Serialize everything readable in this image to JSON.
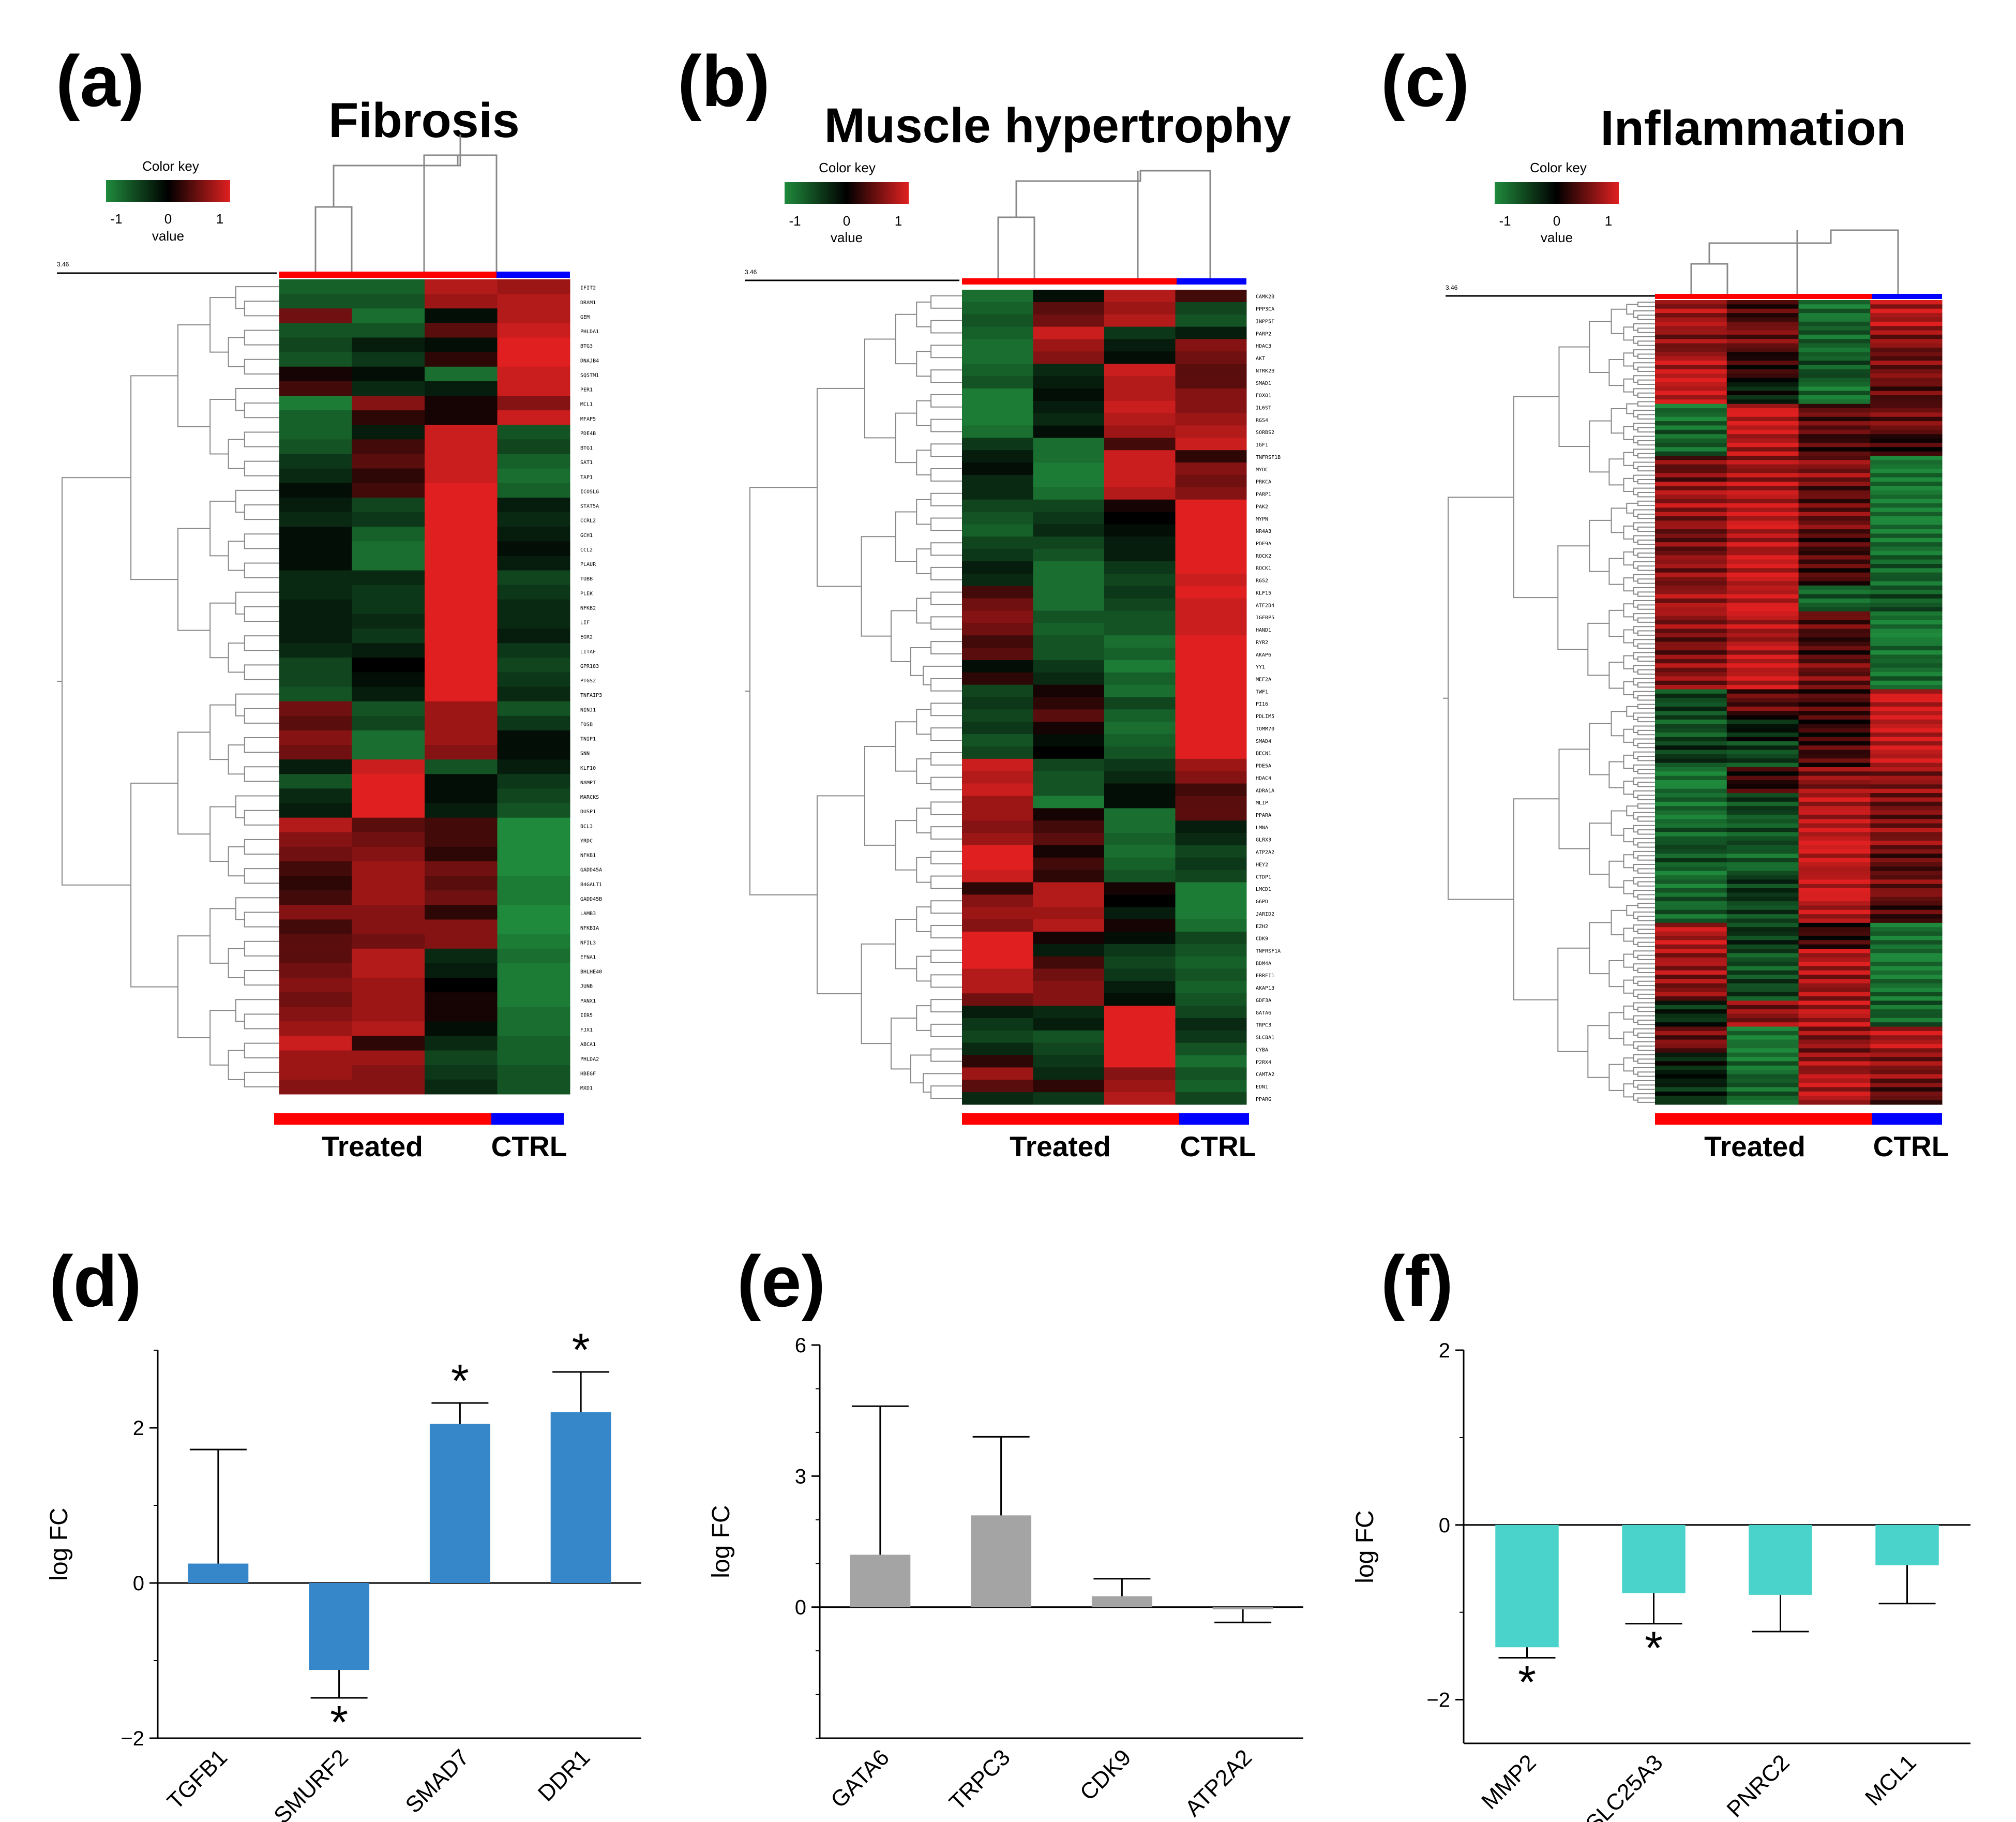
{
  "chart_data": [
    {
      "type": "heatmap",
      "panel": "(a)",
      "title": "Fibrosis",
      "color_key": {
        "title": "Color key",
        "label": "value",
        "ticks": [
          "-1",
          "0",
          "1"
        ],
        "colors": [
          "#1f8a3c",
          "#000000",
          "#e02020"
        ]
      },
      "scale_label": "3.46",
      "groups": [
        {
          "name": "Treated",
          "color": "#ff0000",
          "columns": 3
        },
        {
          "name": "CTRL",
          "color": "#0000ff",
          "columns": 1
        }
      ],
      "rows": [
        "IFIT2",
        "DRAM1",
        "GEM",
        "PHLDA1",
        "BTG3",
        "DNAJB4",
        "SQSTM1",
        "PER1",
        "MCL1",
        "MFAP5",
        "PDE4B",
        "BTG1",
        "SAT1",
        "TAP1",
        "ICOSLG",
        "STAT5A",
        "CCRL2",
        "GCH1",
        "CCL2",
        "PLAUR",
        "TUBB",
        "PLEK",
        "NFKB2",
        "LIF",
        "EGR2",
        "LITAF",
        "GPR183",
        "PTGS2",
        "TNFAIP3",
        "NINJ1",
        "FOSB",
        "TNIP1",
        "SNN",
        "KLF10",
        "NAMPT",
        "MARCKS",
        "DUSP1",
        "BCL3",
        "YRDC",
        "NFKB1",
        "GADD45A",
        "B4GALT1",
        "GADD45B",
        "LAMB3",
        "NFKBIA",
        "NFIL3",
        "EFNA1",
        "BHLHE40",
        "JUNB",
        "PANX1",
        "IER5",
        "FJX1",
        "ABCA1",
        "PHLDA2",
        "HBEGF",
        "MXD1"
      ],
      "values": [
        [
          -0.7,
          -0.7,
          0.8,
          0.7
        ],
        [
          -0.6,
          -0.6,
          0.7,
          0.8
        ],
        [
          0.5,
          -0.8,
          -0.1,
          0.8
        ],
        [
          -0.6,
          -0.6,
          0.4,
          0.9
        ],
        [
          -0.5,
          -0.2,
          -0.1,
          1.0
        ],
        [
          -0.6,
          -0.4,
          0.2,
          1.0
        ],
        [
          0.1,
          -0.1,
          -0.8,
          0.9
        ],
        [
          0.3,
          -0.3,
          -0.2,
          0.9
        ],
        [
          -0.9,
          0.6,
          0.1,
          0.6
        ],
        [
          -0.7,
          0.2,
          0.1,
          0.9
        ],
        [
          -0.7,
          -0.2,
          0.9,
          -0.6
        ],
        [
          -0.6,
          0.3,
          0.9,
          -0.5
        ],
        [
          -0.4,
          0.4,
          0.9,
          -0.7
        ],
        [
          -0.3,
          0.2,
          0.9,
          -0.8
        ],
        [
          -0.1,
          0.3,
          1.0,
          -0.7
        ],
        [
          -0.2,
          -0.5,
          1.0,
          -0.2
        ],
        [
          -0.3,
          -0.4,
          1.0,
          -0.3
        ],
        [
          -0.1,
          -0.7,
          1.0,
          -0.2
        ],
        [
          -0.1,
          -0.8,
          1.0,
          -0.1
        ],
        [
          -0.1,
          -0.8,
          1.0,
          -0.2
        ],
        [
          -0.3,
          -0.3,
          1.0,
          -0.5
        ],
        [
          -0.3,
          -0.4,
          1.0,
          -0.4
        ],
        [
          -0.2,
          -0.4,
          1.0,
          -0.3
        ],
        [
          -0.2,
          -0.3,
          1.0,
          -0.3
        ],
        [
          -0.2,
          -0.4,
          1.0,
          -0.2
        ],
        [
          -0.3,
          -0.2,
          1.0,
          -0.4
        ],
        [
          -0.5,
          0.0,
          1.0,
          -0.5
        ],
        [
          -0.5,
          -0.1,
          1.0,
          -0.4
        ],
        [
          -0.6,
          -0.2,
          1.0,
          -0.3
        ],
        [
          0.5,
          -0.6,
          0.7,
          -0.6
        ],
        [
          0.4,
          -0.5,
          0.7,
          -0.4
        ],
        [
          0.6,
          -0.8,
          0.7,
          -0.1
        ],
        [
          0.5,
          -0.8,
          0.6,
          -0.1
        ],
        [
          -0.2,
          0.9,
          -0.6,
          -0.2
        ],
        [
          -0.6,
          1.0,
          -0.1,
          -0.4
        ],
        [
          -0.3,
          1.0,
          -0.1,
          -0.5
        ],
        [
          -0.2,
          1.0,
          -0.2,
          -0.6
        ],
        [
          0.8,
          0.4,
          0.3,
          -1.0
        ],
        [
          0.6,
          0.5,
          0.3,
          -1.0
        ],
        [
          0.5,
          0.6,
          0.2,
          -1.0
        ],
        [
          0.3,
          0.7,
          0.5,
          -1.0
        ],
        [
          0.2,
          0.7,
          0.4,
          -0.9
        ],
        [
          0.3,
          0.7,
          0.5,
          -0.9
        ],
        [
          0.6,
          0.6,
          0.2,
          -1.0
        ],
        [
          0.3,
          0.6,
          0.6,
          -1.0
        ],
        [
          0.4,
          0.5,
          0.6,
          -0.9
        ],
        [
          0.4,
          0.8,
          -0.3,
          -0.8
        ],
        [
          0.5,
          0.8,
          -0.2,
          -0.9
        ],
        [
          0.6,
          0.7,
          0.0,
          -0.9
        ],
        [
          0.5,
          0.7,
          0.1,
          -0.9
        ],
        [
          0.6,
          0.7,
          0.1,
          -0.8
        ],
        [
          0.7,
          0.8,
          -0.1,
          -0.8
        ],
        [
          0.9,
          0.2,
          -0.3,
          -0.7
        ],
        [
          0.7,
          0.7,
          -0.5,
          -0.7
        ],
        [
          0.7,
          0.6,
          -0.4,
          -0.6
        ],
        [
          0.6,
          0.6,
          -0.3,
          -0.6
        ]
      ]
    },
    {
      "type": "heatmap",
      "panel": "(b)",
      "title": "Muscle hypertrophy",
      "color_key": {
        "title": "Color key",
        "label": "value",
        "ticks": [
          "-1",
          "0",
          "1"
        ],
        "colors": [
          "#1f8a3c",
          "#000000",
          "#e02020"
        ]
      },
      "scale_label": "3.46",
      "groups": [
        {
          "name": "Treated",
          "color": "#ff0000",
          "columns": 3
        },
        {
          "name": "CTRL",
          "color": "#0000ff",
          "columns": 1
        }
      ],
      "rows": [
        "CAMK2B",
        "PPP3CA",
        "INPP5F",
        "PARP2",
        "HDAC3",
        "AKT",
        "NTRK2B",
        "SMAD1",
        "FOXO1",
        "IL6ST",
        "RGS4",
        "SORBS2",
        "IGF1",
        "TNFRSF1B",
        "MYOC",
        "PRKCA",
        "PARP1",
        "PAK2",
        "MYPN",
        "NR4A3",
        "PDE9A",
        "ROCK2",
        "ROCK1",
        "RGS2",
        "KLF15",
        "ATF2B4",
        "IGFBP5",
        "HAND1",
        "RYR2",
        "AKAP6",
        "YY1",
        "MEF2A",
        "TWF1",
        "PI16",
        "PDLIM5",
        "TOMM70",
        "SMAD4",
        "BECN1",
        "PDE5A",
        "HDAC4",
        "ADRA1A",
        "MLIP",
        "PPARA",
        "LMNA",
        "GLRX3",
        "ATP2A2",
        "HEY2",
        "CTDP1",
        "LMCD1",
        "G6PD",
        "JARID2",
        "EZH2",
        "CDK9",
        "TNFRSF1A",
        "BDM4A",
        "ERRFI1",
        "AKAP13",
        "GDF3A",
        "GATA6",
        "TRPC3",
        "SLC8A1",
        "CYBA",
        "P2RX4",
        "CAMTA2",
        "EDN1",
        "PPARG"
      ],
      "values": [
        [
          -0.8,
          -0.1,
          0.8,
          0.3
        ],
        [
          -0.7,
          0.4,
          0.7,
          -0.5
        ],
        [
          -0.6,
          0.5,
          0.8,
          -0.6
        ],
        [
          -0.7,
          0.9,
          -0.4,
          -0.2
        ],
        [
          -0.8,
          0.7,
          -0.2,
          0.6
        ],
        [
          -0.8,
          0.6,
          -0.1,
          0.5
        ],
        [
          -0.7,
          -0.3,
          0.9,
          0.4
        ],
        [
          -0.6,
          -0.2,
          0.8,
          0.4
        ],
        [
          -0.9,
          -0.1,
          0.8,
          0.6
        ],
        [
          -0.9,
          -0.2,
          0.9,
          0.6
        ],
        [
          -0.9,
          -0.3,
          0.8,
          0.7
        ],
        [
          -0.8,
          -0.1,
          0.7,
          0.8
        ],
        [
          -0.4,
          -0.8,
          0.3,
          0.9
        ],
        [
          -0.2,
          -0.8,
          0.9,
          0.2
        ],
        [
          -0.1,
          -0.9,
          0.9,
          0.6
        ],
        [
          -0.3,
          -0.9,
          0.9,
          0.5
        ],
        [
          -0.3,
          -0.8,
          0.8,
          0.6
        ],
        [
          -0.5,
          -0.5,
          0.1,
          1.0
        ],
        [
          -0.6,
          -0.4,
          0.0,
          1.0
        ],
        [
          -0.7,
          -0.3,
          -0.1,
          1.0
        ],
        [
          -0.5,
          -0.5,
          -0.2,
          1.0
        ],
        [
          -0.4,
          -0.6,
          -0.2,
          1.0
        ],
        [
          -0.2,
          -0.8,
          -0.4,
          1.0
        ],
        [
          -0.3,
          -0.8,
          -0.5,
          0.9
        ],
        [
          0.3,
          -0.8,
          -0.4,
          1.0
        ],
        [
          0.5,
          -0.8,
          -0.5,
          0.9
        ],
        [
          0.6,
          -0.6,
          -0.6,
          0.9
        ],
        [
          0.5,
          -0.7,
          -0.6,
          0.9
        ],
        [
          0.3,
          -0.6,
          -0.8,
          1.0
        ],
        [
          0.4,
          -0.6,
          -0.7,
          1.0
        ],
        [
          -0.1,
          -0.4,
          -0.9,
          1.0
        ],
        [
          0.2,
          -0.3,
          -0.7,
          1.0
        ],
        [
          -0.5,
          0.1,
          -0.8,
          1.0
        ],
        [
          -0.4,
          0.2,
          -0.5,
          1.0
        ],
        [
          -0.5,
          0.4,
          -0.7,
          1.0
        ],
        [
          -0.4,
          0.1,
          -0.8,
          1.0
        ],
        [
          -0.6,
          -0.1,
          -0.7,
          1.0
        ],
        [
          -0.5,
          0.0,
          -0.6,
          1.0
        ],
        [
          0.9,
          -0.5,
          -0.4,
          0.7
        ],
        [
          0.8,
          -0.6,
          -0.3,
          0.6
        ],
        [
          0.9,
          -0.6,
          -0.1,
          0.3
        ],
        [
          0.7,
          -0.9,
          -0.1,
          0.4
        ],
        [
          0.7,
          0.1,
          -0.8,
          0.4
        ],
        [
          0.6,
          0.3,
          -0.8,
          -0.2
        ],
        [
          0.7,
          0.4,
          -0.7,
          -0.3
        ],
        [
          1.0,
          0.1,
          -0.8,
          -0.5
        ],
        [
          1.0,
          0.3,
          -0.7,
          -0.4
        ],
        [
          0.9,
          0.2,
          -0.6,
          -0.5
        ],
        [
          0.2,
          0.8,
          0.1,
          -0.9
        ],
        [
          0.6,
          0.8,
          0.0,
          -0.9
        ],
        [
          0.7,
          0.7,
          -0.2,
          -0.9
        ],
        [
          0.6,
          0.8,
          0.1,
          -0.8
        ],
        [
          1.0,
          0.1,
          -0.1,
          -0.5
        ],
        [
          1.0,
          -0.2,
          -0.4,
          -0.6
        ],
        [
          1.0,
          0.3,
          -0.5,
          -0.7
        ],
        [
          0.8,
          0.5,
          -0.4,
          -0.6
        ],
        [
          0.8,
          0.6,
          -0.2,
          -0.7
        ],
        [
          0.5,
          0.6,
          -0.1,
          -0.6
        ],
        [
          -0.2,
          -0.3,
          1.0,
          -0.5
        ],
        [
          -0.4,
          -0.2,
          1.0,
          -0.3
        ],
        [
          -0.5,
          -0.6,
          1.0,
          -0.4
        ],
        [
          -0.3,
          -0.5,
          1.0,
          -0.6
        ],
        [
          0.2,
          -0.4,
          1.0,
          -0.8
        ],
        [
          0.7,
          -0.3,
          0.6,
          -0.6
        ],
        [
          0.4,
          0.2,
          0.7,
          -0.7
        ],
        [
          -0.3,
          -0.4,
          0.8,
          -0.5
        ]
      ]
    },
    {
      "type": "heatmap",
      "panel": "(c)",
      "title": "Inflammation",
      "color_key": {
        "title": "Color key",
        "label": "value",
        "ticks": [
          "-1",
          "0",
          "1"
        ],
        "colors": [
          "#1f8a3c",
          "#000000",
          "#e02020"
        ]
      },
      "scale_label": "3.46",
      "groups": [
        {
          "name": "Treated",
          "color": "#ff0000",
          "columns": 3
        },
        {
          "name": "CTRL",
          "color": "#0000ff",
          "columns": 1
        }
      ],
      "rows": [],
      "block_values": [
        [
          0.7,
          0.3,
          -0.8,
          0.8
        ],
        [
          0.6,
          0.5,
          -0.7,
          0.6
        ],
        [
          0.8,
          0.2,
          -0.6,
          0.5
        ],
        [
          0.9,
          -0.2,
          -0.8,
          0.4
        ],
        [
          -0.8,
          0.9,
          0.4,
          0.5
        ],
        [
          -0.7,
          0.8,
          0.3,
          0.2
        ],
        [
          0.5,
          0.7,
          0.6,
          -0.9
        ],
        [
          0.7,
          0.8,
          0.4,
          -0.9
        ],
        [
          0.6,
          0.9,
          0.5,
          -0.9
        ],
        [
          0.5,
          0.8,
          0.3,
          -0.8
        ],
        [
          0.6,
          0.9,
          0.3,
          -0.7
        ],
        [
          0.7,
          0.9,
          -0.7,
          -0.6
        ],
        [
          0.6,
          0.8,
          0.4,
          -0.9
        ],
        [
          0.5,
          0.8,
          0.3,
          -0.8
        ],
        [
          0.6,
          0.9,
          0.5,
          -0.8
        ],
        [
          -0.5,
          0.4,
          0.3,
          0.9
        ],
        [
          -0.6,
          -0.2,
          0.2,
          0.9
        ],
        [
          -0.4,
          -0.5,
          0.3,
          0.9
        ],
        [
          -0.9,
          0.2,
          0.6,
          0.6
        ],
        [
          -0.8,
          -0.5,
          0.8,
          0.5
        ],
        [
          -0.7,
          -0.6,
          0.9,
          0.6
        ],
        [
          -0.6,
          -0.7,
          0.9,
          0.4
        ],
        [
          -0.8,
          -0.4,
          0.9,
          0.5
        ],
        [
          -0.7,
          -0.5,
          0.8,
          0.3
        ],
        [
          0.8,
          -0.4,
          0.2,
          -0.8
        ],
        [
          0.7,
          -0.6,
          0.8,
          -0.9
        ],
        [
          0.6,
          -0.5,
          0.7,
          -0.8
        ],
        [
          -0.3,
          0.6,
          0.8,
          -0.7
        ],
        [
          0.5,
          -0.9,
          0.6,
          0.8
        ],
        [
          -0.2,
          -0.8,
          0.7,
          0.6
        ],
        [
          -0.3,
          -0.7,
          0.8,
          0.4
        ]
      ]
    },
    {
      "type": "bar",
      "panel": "(d)",
      "categories": [
        "TGFB1",
        "SMURF2",
        "SMAD7",
        "DDR1"
      ],
      "values": [
        0.25,
        -1.12,
        2.05,
        2.2
      ],
      "error": [
        1.47,
        0.36,
        0.27,
        0.52
      ],
      "significant": [
        false,
        true,
        true,
        true
      ],
      "significance_marker": "*",
      "ylabel": "log FC",
      "ylim": [
        -2,
        3
      ],
      "yticks": [
        "-2",
        "0",
        "2"
      ],
      "color": "#3587c9"
    },
    {
      "type": "bar",
      "panel": "(e)",
      "categories": [
        "GATA6",
        "TRPC3",
        "CDK9",
        "ATP2A2"
      ],
      "values": [
        1.2,
        2.1,
        0.25,
        -0.05
      ],
      "error": [
        3.4,
        1.8,
        0.4,
        0.3
      ],
      "significant": [
        false,
        false,
        false,
        false
      ],
      "significance_marker": "*",
      "ylabel": "log FC",
      "ylim": [
        -3,
        6
      ],
      "yticks": [
        "0",
        "3",
        "6"
      ],
      "color": "#a4a4a4"
    },
    {
      "type": "bar",
      "panel": "(f)",
      "categories": [
        "MMP2",
        "SLC25A3",
        "PNRC2",
        "MCL1"
      ],
      "values": [
        -1.4,
        -0.78,
        -0.8,
        -0.46
      ],
      "error": [
        0.12,
        0.35,
        0.42,
        0.44
      ],
      "significant": [
        true,
        true,
        false,
        false
      ],
      "significance_marker": "*",
      "ylabel": "log FC",
      "ylim": [
        -2.5,
        2
      ],
      "yticks": [
        "-2",
        "0",
        "2"
      ],
      "color": "#4ad3cb"
    }
  ]
}
